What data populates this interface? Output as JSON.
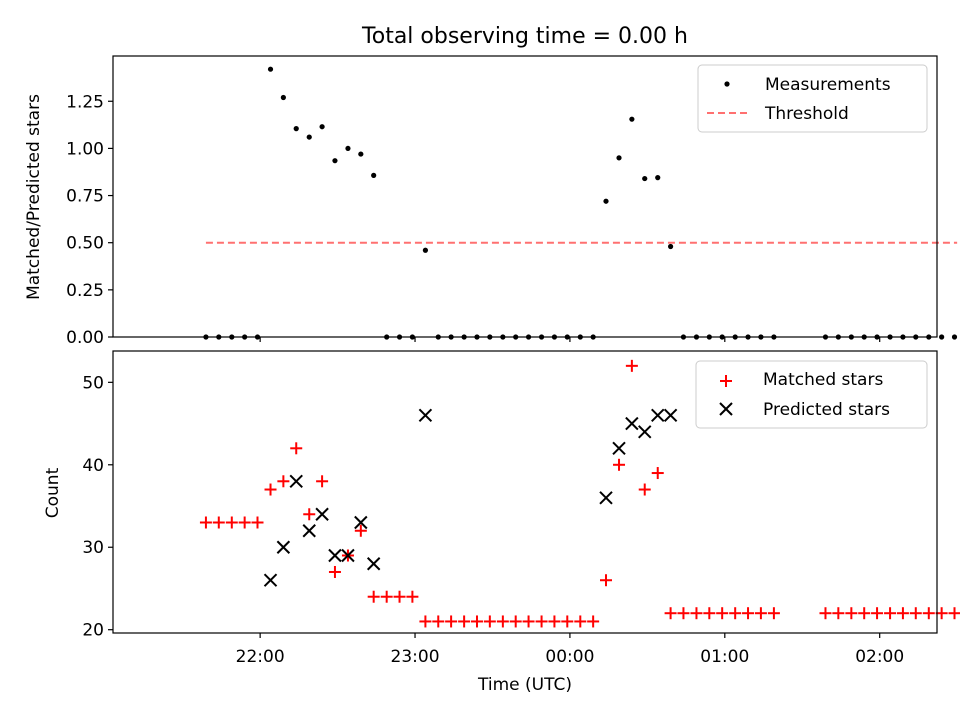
{
  "chart_data": [
    {
      "type": "scatter",
      "title": "Total observing time = 0.00 h",
      "xlabel": "",
      "ylabel": "Matched/Predicted stars",
      "xlim_hours": [
        -0.95,
        4.37
      ],
      "ylim": [
        0,
        1.49
      ],
      "yticks": [
        "0.00",
        "0.25",
        "0.50",
        "0.75",
        "1.00",
        "1.25"
      ],
      "legend_position": "top-right",
      "series": [
        {
          "name": "Measurements",
          "marker": "dot",
          "color": "#000000",
          "x": [
            -0.35,
            -0.267,
            -0.183,
            -0.1,
            -0.017,
            0.067,
            0.15,
            0.233,
            0.317,
            0.4,
            0.483,
            0.567,
            0.65,
            0.733,
            0.817,
            0.9,
            0.983,
            1.067,
            1.15,
            1.233,
            1.317,
            1.4,
            1.483,
            1.567,
            1.65,
            1.733,
            1.817,
            1.9,
            1.983,
            2.067,
            2.15,
            2.233,
            2.317,
            2.4,
            2.483,
            2.567,
            2.65,
            2.733,
            2.817,
            2.9,
            2.983,
            3.067,
            3.15,
            3.233,
            3.317,
            3.65,
            3.733,
            3.817,
            3.9,
            3.983,
            4.067,
            4.15,
            4.233,
            4.317,
            4.4,
            4.483
          ],
          "values": [
            0,
            0,
            0,
            0,
            0,
            1.42,
            1.27,
            1.105,
            1.06,
            1.115,
            0.935,
            1.0,
            0.97,
            0.857,
            0,
            0,
            0,
            0.46,
            0,
            0,
            0,
            0,
            0,
            0,
            0,
            0,
            0,
            0,
            0,
            0,
            0,
            0.72,
            0.95,
            1.155,
            0.84,
            0.845,
            0.48,
            0,
            0,
            0,
            0,
            0,
            0,
            0,
            0,
            0,
            0,
            0,
            0,
            0,
            0,
            0,
            0,
            0,
            0,
            0
          ]
        },
        {
          "name": "Threshold",
          "style": "dashed",
          "color": "#ff7070",
          "x": [
            -0.35,
            4.5
          ],
          "values": [
            0.5,
            0.5
          ]
        }
      ]
    },
    {
      "type": "scatter",
      "title": "",
      "xlabel": "Time (UTC)",
      "ylabel": "Count",
      "xlim_hours": [
        -0.95,
        4.37
      ],
      "ylim": [
        19.6,
        53.8
      ],
      "yticks": [
        "20",
        "30",
        "40",
        "50"
      ],
      "xtick_hours": [
        0,
        1,
        2,
        3,
        4
      ],
      "xticks": [
        "22:00",
        "23:00",
        "00:00",
        "01:00",
        "02:00"
      ],
      "legend_position": "top-right",
      "series": [
        {
          "name": "Matched stars",
          "marker": "plus",
          "color": "#ff0000",
          "x": [
            -0.35,
            -0.267,
            -0.183,
            -0.1,
            -0.017,
            0.067,
            0.15,
            0.233,
            0.317,
            0.4,
            0.483,
            0.567,
            0.65,
            0.733,
            0.817,
            0.9,
            0.983,
            1.067,
            1.15,
            1.233,
            1.317,
            1.4,
            1.483,
            1.567,
            1.65,
            1.733,
            1.817,
            1.9,
            1.983,
            2.067,
            2.15,
            2.233,
            2.317,
            2.4,
            2.483,
            2.567,
            2.65,
            2.733,
            2.817,
            2.9,
            2.983,
            3.067,
            3.15,
            3.233,
            3.317,
            3.65,
            3.733,
            3.817,
            3.9,
            3.983,
            4.067,
            4.15,
            4.233,
            4.317,
            4.4,
            4.483
          ],
          "values": [
            33,
            33,
            33,
            33,
            33,
            37,
            38,
            42,
            34,
            38,
            27,
            29,
            32,
            24,
            24,
            24,
            24,
            21,
            21,
            21,
            21,
            21,
            21,
            21,
            21,
            21,
            21,
            21,
            21,
            21,
            21,
            26,
            40,
            52,
            37,
            39,
            22,
            22,
            22,
            22,
            22,
            22,
            22,
            22,
            22,
            22,
            22,
            22,
            22,
            22,
            22,
            22,
            22,
            22,
            22,
            22
          ]
        },
        {
          "name": "Predicted stars",
          "marker": "x",
          "color": "#000000",
          "x": [
            0.067,
            0.15,
            0.233,
            0.317,
            0.4,
            0.483,
            0.567,
            0.65,
            0.733,
            1.067,
            2.233,
            2.317,
            2.4,
            2.483,
            2.567,
            2.65
          ],
          "values": [
            26,
            30,
            38,
            32,
            34,
            29,
            29,
            33,
            28,
            46,
            36,
            42,
            45,
            44,
            46,
            46
          ]
        }
      ]
    }
  ]
}
